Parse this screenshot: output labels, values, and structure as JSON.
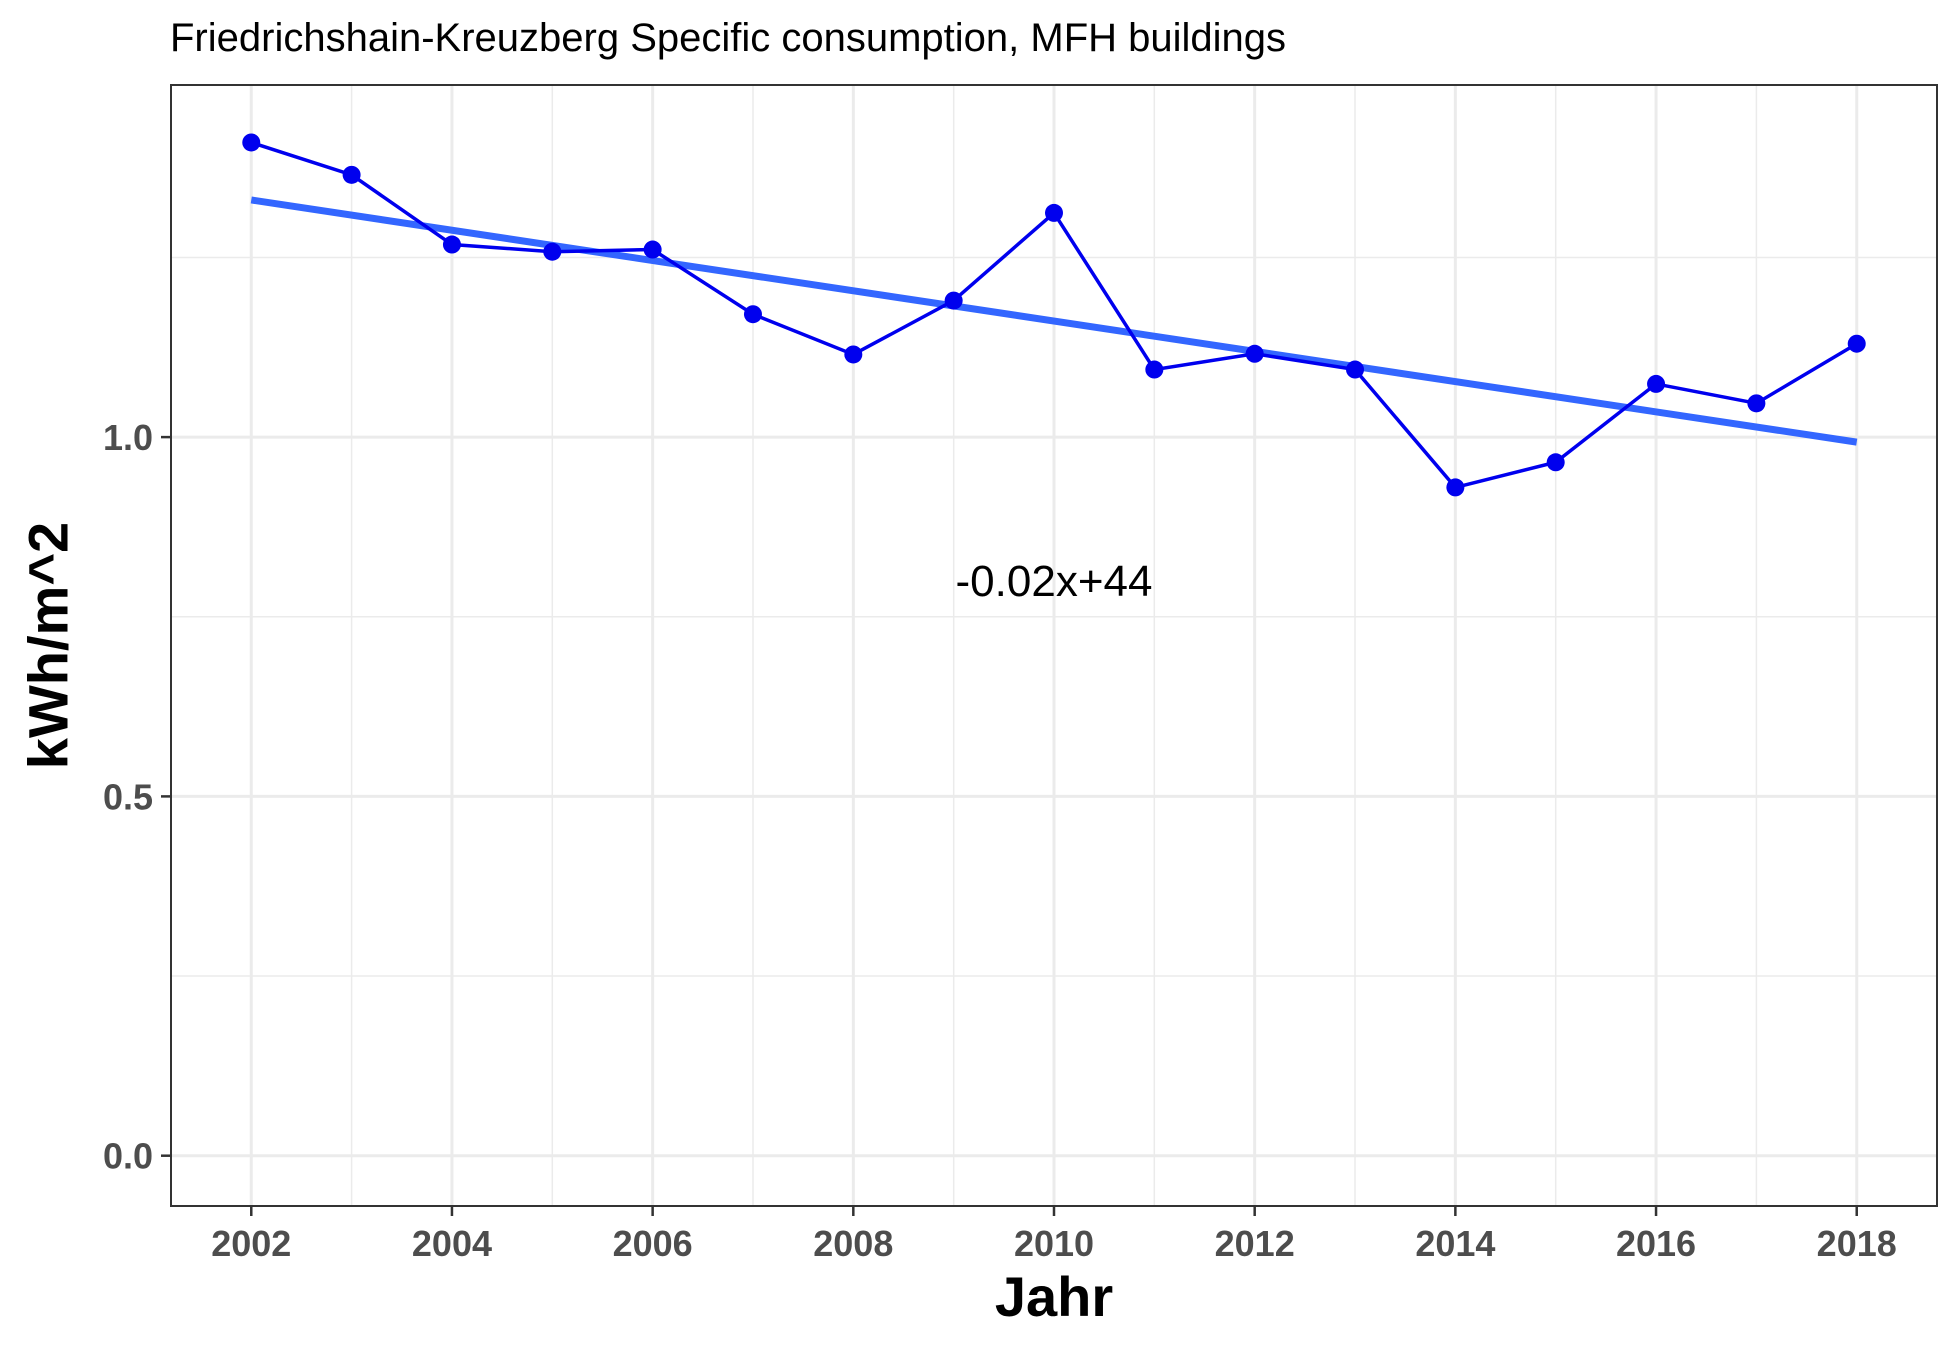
{
  "chart_data": {
    "type": "line",
    "title": "Friedrichshain-Kreuzberg Specific consumption, MFH buildings",
    "xlabel": "Jahr",
    "ylabel": "kWh/m^2",
    "x_ticks": [
      2002,
      2004,
      2006,
      2008,
      2010,
      2012,
      2014,
      2016,
      2018
    ],
    "x_tick_labels": [
      "2002",
      "2004",
      "2006",
      "2008",
      "2010",
      "2012",
      "2014",
      "2016",
      "2018"
    ],
    "y_ticks": [
      0.0,
      0.5,
      1.0
    ],
    "y_tick_labels": [
      "0.0",
      "0.5",
      "1.0"
    ],
    "xlim": [
      2001.2,
      2018.8
    ],
    "ylim": [
      -0.07,
      1.49
    ],
    "grid": true,
    "series": [
      {
        "name": "",
        "color": "#0000ee",
        "x": [
          2002,
          2003,
          2004,
          2005,
          2006,
          2007,
          2008,
          2009,
          2010,
          2011,
          2012,
          2013,
          2014,
          2015,
          2016,
          2017,
          2018
        ],
        "y": [
          1.41,
          1.365,
          1.268,
          1.258,
          1.261,
          1.171,
          1.115,
          1.19,
          1.312,
          1.094,
          1.116,
          1.094,
          0.93,
          0.965,
          1.074,
          1.047,
          1.13
        ]
      }
    ],
    "trend_line": {
      "color": "#3366ff",
      "x": [
        2002,
        2018
      ],
      "y": [
        1.33,
        0.993
      ]
    },
    "annotation": {
      "text": "-0.02x+44",
      "x": 2010,
      "y": 0.8
    }
  }
}
